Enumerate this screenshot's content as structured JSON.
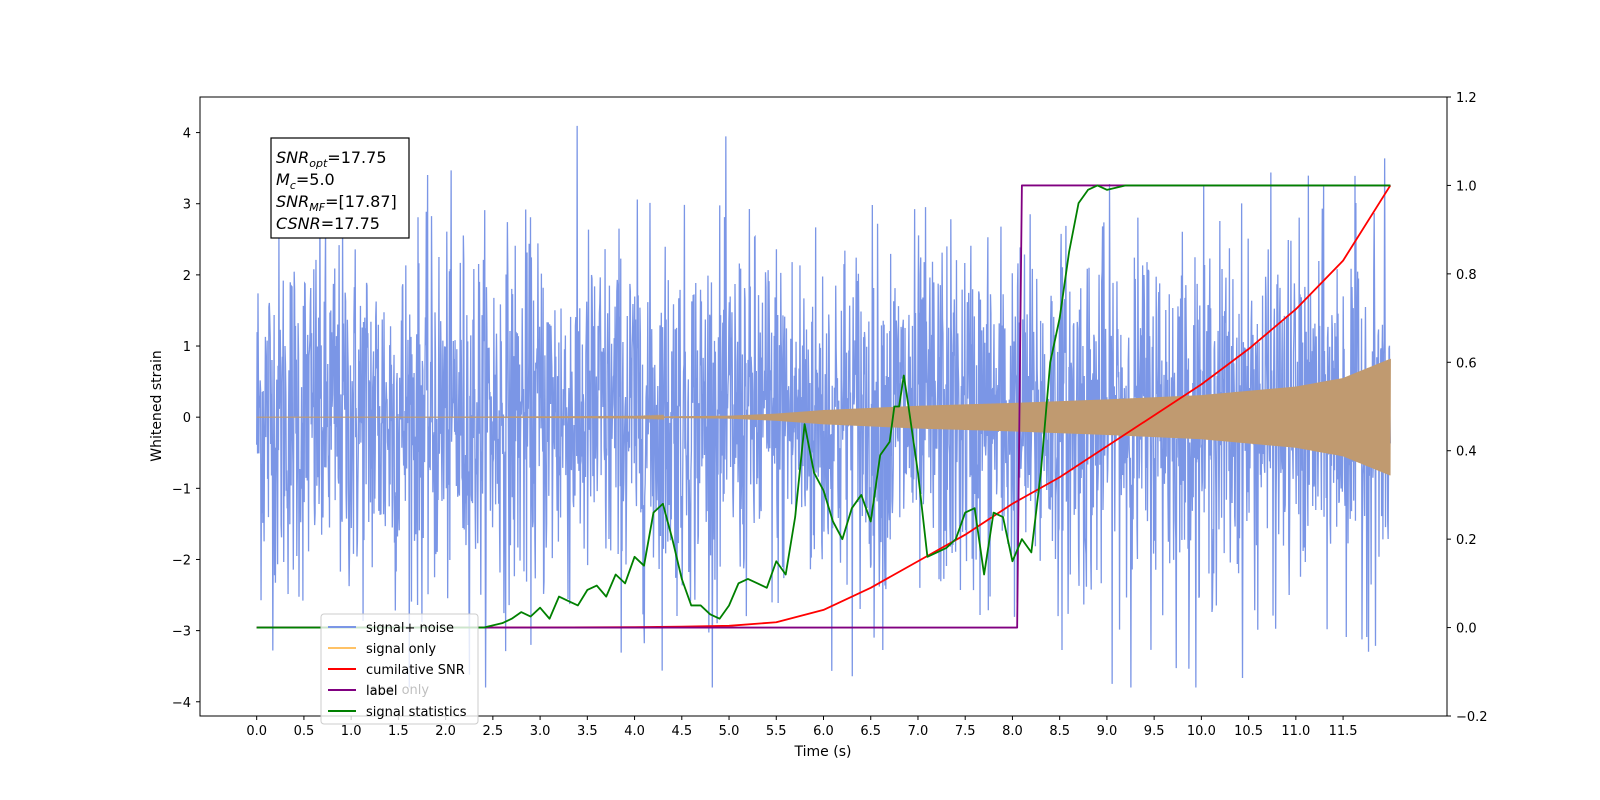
{
  "chart_data": {
    "type": "line",
    "xlabel": "Time (s)",
    "ylabel": "Whitened strain",
    "xlim": [
      -0.6,
      12.6
    ],
    "ylim": [
      -4.2,
      4.5
    ],
    "y2lim": [
      -0.2,
      1.2
    ],
    "x_ticks": [
      "0.0",
      "0.5",
      "1.0",
      "1.5",
      "2.0",
      "2.5",
      "3.0",
      "3.5",
      "4.0",
      "4.5",
      "5.0",
      "5.5",
      "6.0",
      "6.5",
      "7.0",
      "7.5",
      "8.0",
      "8.5",
      "9.0",
      "9.5",
      "10.0",
      "10.5",
      "11.0",
      "11.5"
    ],
    "y_ticks": [
      "4",
      "3",
      "2",
      "1",
      "0",
      "−1",
      "−2",
      "−3",
      "−4"
    ],
    "y2_ticks": [
      "1.2",
      "1.0",
      "0.8",
      "0.6",
      "0.4",
      "0.2",
      "0.0",
      "−0.2"
    ],
    "annotation": {
      "lines": [
        {
          "base": "SNR",
          "sub": "opt",
          "rest": "=17.75"
        },
        {
          "base": "M",
          "sub": "c",
          "rest": "=5.0"
        },
        {
          "base": "SNR",
          "sub": "MF",
          "rest": "=[17.87]"
        },
        {
          "base": "CSNR",
          "sub": "",
          "rest": "=17.75"
        }
      ]
    },
    "legend": {
      "placement": "lower-left",
      "entries": [
        {
          "label": "signal+ noise",
          "color": "#7b96e6"
        },
        {
          "label": "signal only",
          "color": "#ffc266"
        },
        {
          "label": "cumilative SNR",
          "color": "#ff0000"
        },
        {
          "label": "label",
          "color": "#800080"
        },
        {
          "label": "signal statistics",
          "color": "#008000"
        }
      ]
    },
    "hidden_legend_text": [
      "label only"
    ],
    "series": [
      {
        "name": "signal+ noise",
        "axis": "left",
        "color": "#7b96e6",
        "x_range": [
          0,
          12
        ],
        "noise_std": 1.0,
        "note_values": "noise waveform, peaks about ±3.8"
      },
      {
        "name": "signal only",
        "axis": "left",
        "color": "#c09a70",
        "x_range": [
          0,
          12
        ],
        "envelope_x": [
          0,
          2,
          4,
          5,
          5.5,
          6,
          7,
          8,
          9,
          10,
          11,
          11.5,
          12
        ],
        "envelope_y": [
          0.0,
          0.0,
          0.005,
          0.02,
          0.05,
          0.1,
          0.16,
          0.2,
          0.25,
          0.31,
          0.43,
          0.55,
          0.82
        ]
      },
      {
        "name": "cumilative SNR",
        "axis": "right",
        "color": "#ff0000",
        "x": [
          0,
          1,
          2,
          3,
          4,
          4.5,
          5,
          5.5,
          6,
          6.5,
          7,
          7.5,
          8,
          8.5,
          9,
          9.5,
          10,
          10.5,
          11,
          11.5,
          12
        ],
        "y": [
          0,
          0,
          0,
          0,
          0.001,
          0.002,
          0.004,
          0.012,
          0.04,
          0.09,
          0.15,
          0.21,
          0.28,
          0.34,
          0.41,
          0.48,
          0.55,
          0.63,
          0.72,
          0.83,
          1.0
        ]
      },
      {
        "name": "label",
        "axis": "right",
        "color": "#800080",
        "x": [
          0,
          8.05,
          8.1,
          12
        ],
        "y": [
          0,
          0,
          1,
          1
        ]
      },
      {
        "name": "signal statistics",
        "axis": "right",
        "color": "#008000",
        "x": [
          0,
          2.4,
          2.6,
          2.7,
          2.8,
          2.9,
          3.0,
          3.1,
          3.2,
          3.3,
          3.4,
          3.5,
          3.6,
          3.7,
          3.8,
          3.9,
          4.0,
          4.1,
          4.2,
          4.3,
          4.35,
          4.4,
          4.5,
          4.6,
          4.7,
          4.8,
          4.9,
          5.0,
          5.1,
          5.2,
          5.3,
          5.4,
          5.5,
          5.6,
          5.7,
          5.8,
          5.9,
          6.0,
          6.1,
          6.2,
          6.3,
          6.4,
          6.5,
          6.6,
          6.7,
          6.75,
          6.8,
          6.85,
          6.9,
          7.0,
          7.1,
          7.2,
          7.3,
          7.4,
          7.5,
          7.6,
          7.7,
          7.8,
          7.9,
          8.0,
          8.1,
          8.2,
          8.3,
          8.4,
          8.5,
          8.6,
          8.7,
          8.8,
          8.9,
          9.0,
          9.2,
          9.5,
          10.0,
          12
        ],
        "y": [
          0,
          0,
          0.01,
          0.02,
          0.035,
          0.025,
          0.045,
          0.02,
          0.07,
          0.06,
          0.05,
          0.085,
          0.095,
          0.07,
          0.12,
          0.1,
          0.16,
          0.14,
          0.26,
          0.28,
          0.24,
          0.2,
          0.11,
          0.05,
          0.05,
          0.03,
          0.02,
          0.05,
          0.1,
          0.11,
          0.1,
          0.09,
          0.15,
          0.12,
          0.25,
          0.46,
          0.35,
          0.31,
          0.24,
          0.2,
          0.27,
          0.3,
          0.24,
          0.39,
          0.42,
          0.5,
          0.5,
          0.57,
          0.5,
          0.35,
          0.16,
          0.17,
          0.18,
          0.2,
          0.26,
          0.27,
          0.12,
          0.26,
          0.25,
          0.15,
          0.2,
          0.17,
          0.35,
          0.6,
          0.7,
          0.85,
          0.96,
          0.99,
          1.0,
          0.99,
          1.0,
          1.0,
          1.0,
          1.0
        ]
      }
    ]
  }
}
